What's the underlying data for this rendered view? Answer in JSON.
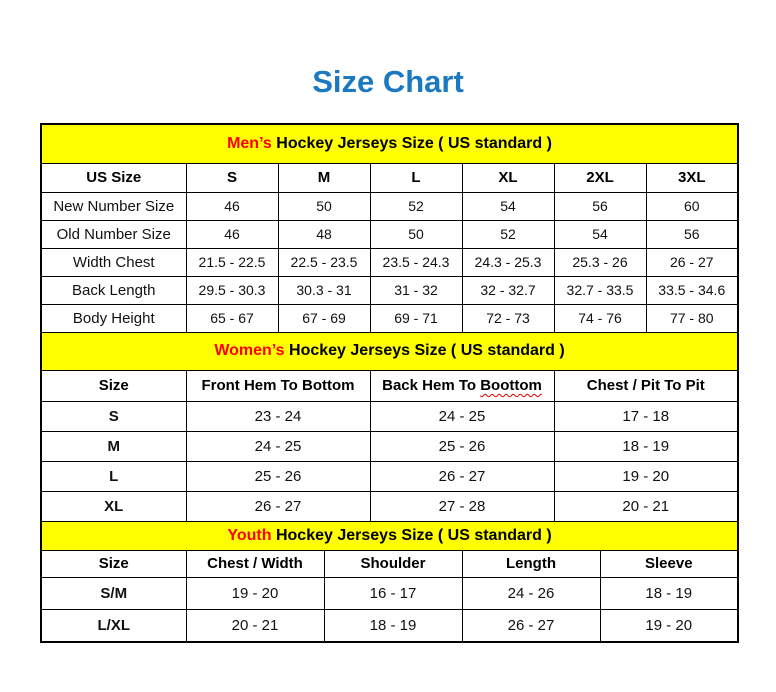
{
  "page": {
    "title": "Size Chart"
  },
  "colors": {
    "title_blue": "#1b79c1",
    "band_yellow": "#ffff00",
    "accent_red": "#ff0000",
    "grid_black": "#000000",
    "spellcheck_squiggle_red": "#dd0000"
  },
  "tables": [
    {
      "id": "mens",
      "band": {
        "highlight": "Men’s",
        "rest": " Hockey Jerseys Size ( US standard )"
      },
      "columns": [
        "US Size",
        "S",
        "M",
        "L",
        "XL",
        "2XL",
        "3XL"
      ],
      "rows": [
        [
          "New Number Size",
          "46",
          "50",
          "52",
          "54",
          "56",
          "60"
        ],
        [
          "Old Number Size",
          "46",
          "48",
          "50",
          "52",
          "54",
          "56"
        ],
        [
          "Width Chest",
          "21.5 - 22.5",
          "22.5 - 23.5",
          "23.5 - 24.3",
          "24.3 - 25.3",
          "25.3 - 26",
          "26 - 27"
        ],
        [
          "Back Length",
          "29.5 - 30.3",
          "30.3 - 31",
          "31 - 32",
          "32 - 32.7",
          "32.7 - 33.5",
          "33.5 - 34.6"
        ],
        [
          "Body Height",
          "65 - 67",
          "67 - 69",
          "69 - 71",
          "72 - 73",
          "74 - 76",
          "77 - 80"
        ]
      ]
    },
    {
      "id": "womens",
      "band": {
        "highlight": "Women’s",
        "rest": " Hockey Jerseys Size ( US standard )"
      },
      "columns": [
        "Size",
        "Front Hem To Bottom",
        {
          "prefix": "Back Hem To ",
          "word": "Boottom"
        },
        "Chest / Pit To Pit"
      ],
      "rows": [
        [
          "S",
          "23 - 24",
          "24 - 25",
          "17 - 18"
        ],
        [
          "M",
          "24 - 25",
          "25 - 26",
          "18 - 19"
        ],
        [
          "L",
          "25 - 26",
          "26 - 27",
          "19 - 20"
        ],
        [
          "XL",
          "26 - 27",
          "27 - 28",
          "20 - 21"
        ]
      ]
    },
    {
      "id": "youth",
      "band": {
        "highlight": "Youth",
        "rest": " Hockey Jerseys Size ( US standard )"
      },
      "columns": [
        "Size",
        "Chest / Width",
        "Shoulder",
        "Length",
        "Sleeve"
      ],
      "rows": [
        [
          "S/M",
          "19 - 20",
          "16 - 17",
          "24 - 26",
          "18 - 19"
        ],
        [
          "L/XL",
          "20 - 21",
          "18 - 19",
          "26 - 27",
          "19 - 20"
        ]
      ]
    }
  ]
}
